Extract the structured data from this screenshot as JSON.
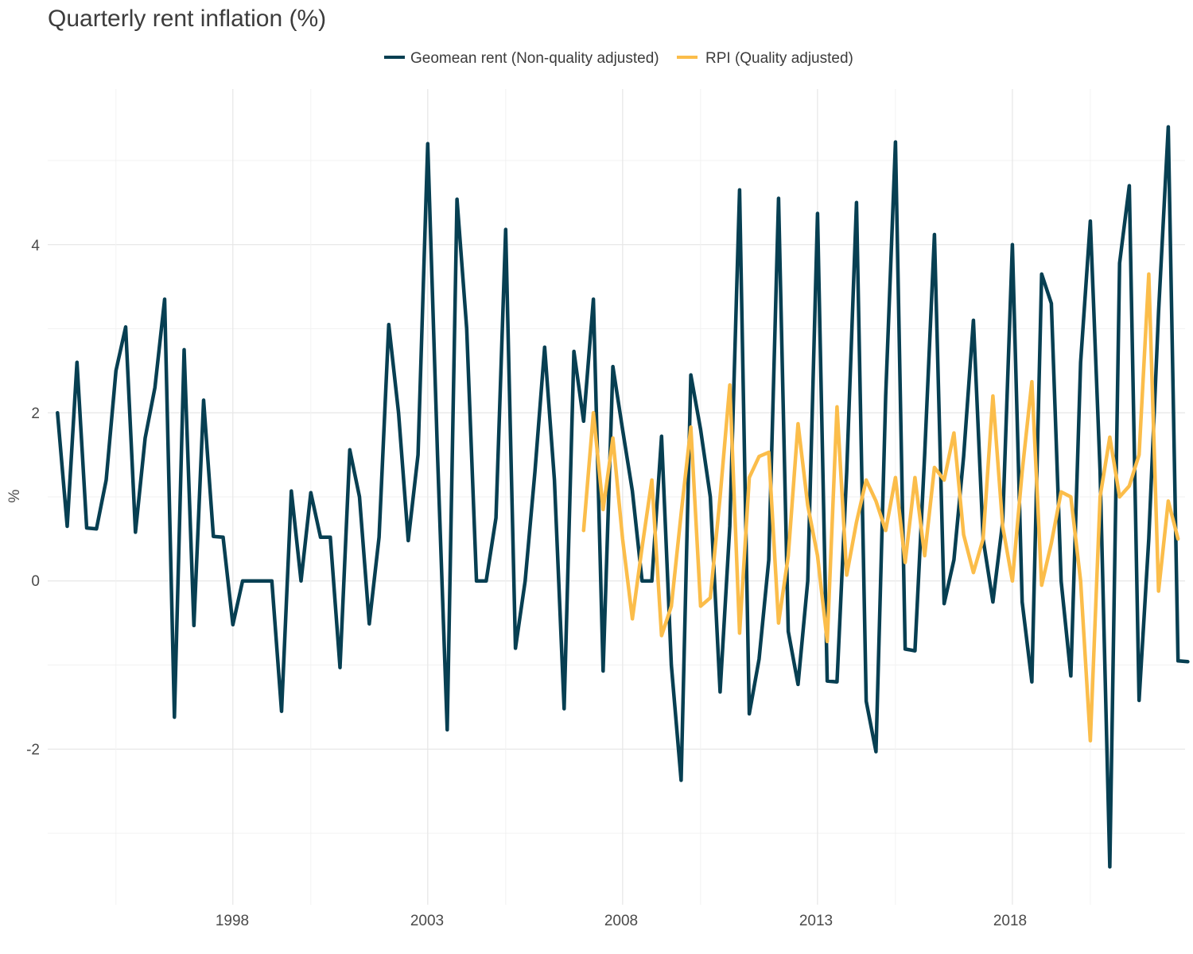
{
  "chart_data": {
    "type": "line",
    "title": "Quarterly rent inflation (%)",
    "xlabel": "",
    "ylabel": "%",
    "x_ticks": [
      "1998",
      "2003",
      "2008",
      "2013",
      "2018"
    ],
    "y_ticks": [
      "-2",
      "0",
      "2",
      "4"
    ],
    "xlim": [
      1993.75,
      2022.93
    ],
    "ylim": [
      -3.85,
      5.85
    ],
    "grid": true,
    "legend_position": "top",
    "series": [
      {
        "name": "Geomean rent (Non-quality adjusted)",
        "color": "#073f52",
        "start_year": 1994,
        "values": [
          2.0,
          0.65,
          2.6,
          0.63,
          0.62,
          1.2,
          2.5,
          3.02,
          0.58,
          1.7,
          2.3,
          3.35,
          -1.62,
          2.75,
          -0.53,
          2.15,
          0.53,
          0.52,
          -0.52,
          0.0,
          0.0,
          0.0,
          0.0,
          -1.55,
          1.07,
          0.0,
          1.05,
          0.52,
          0.52,
          -1.03,
          1.56,
          1.0,
          -0.51,
          0.52,
          3.05,
          2.0,
          0.48,
          1.5,
          5.2,
          1.5,
          -1.77,
          4.54,
          3.0,
          0.0,
          0.0,
          0.75,
          4.18,
          -0.8,
          0.0,
          1.3,
          2.78,
          1.2,
          -1.52,
          2.73,
          1.9,
          3.35,
          -1.07,
          2.55,
          1.8,
          1.07,
          0.0,
          0.0,
          1.72,
          -1.0,
          -2.37,
          2.45,
          1.8,
          1.0,
          -1.32,
          0.65,
          4.65,
          -1.58,
          -0.93,
          0.25,
          4.55,
          -0.6,
          -1.23,
          0.0,
          4.37,
          -1.19,
          -1.2,
          1.3,
          4.5,
          -1.43,
          -2.03,
          2.2,
          5.22,
          -0.81,
          -0.83,
          1.5,
          4.12,
          -0.27,
          0.25,
          1.48,
          3.1,
          0.5,
          -0.25,
          0.7,
          4.0,
          -0.25,
          -1.2,
          3.65,
          3.3,
          0.0,
          -1.13,
          2.6,
          4.28,
          1.3,
          -3.4,
          3.78,
          4.7,
          -1.42,
          0.5,
          3.2,
          5.4,
          -0.95,
          -0.96
        ]
      },
      {
        "name": "RPI (Quality adjusted)",
        "color": "#fbbd4a",
        "start_year": 2007.5,
        "values": [
          0.6,
          2.0,
          0.85,
          1.7,
          0.5,
          -0.45,
          0.4,
          1.2,
          -0.65,
          -0.3,
          0.8,
          1.83,
          -0.3,
          -0.2,
          1.0,
          2.33,
          -0.62,
          1.23,
          1.48,
          1.53,
          -0.5,
          0.3,
          1.87,
          0.9,
          0.3,
          -0.72,
          2.07,
          0.07,
          0.7,
          1.2,
          0.95,
          0.6,
          1.23,
          0.22,
          1.23,
          0.3,
          1.35,
          1.2,
          1.76,
          0.55,
          0.1,
          0.5,
          2.2,
          0.65,
          0.0,
          1.3,
          2.37,
          -0.05,
          0.45,
          1.06,
          1.0,
          0.0,
          -1.9,
          1.0,
          1.71,
          1.0,
          1.13,
          1.5,
          3.65,
          -0.12,
          0.95,
          0.5
        ]
      }
    ]
  }
}
